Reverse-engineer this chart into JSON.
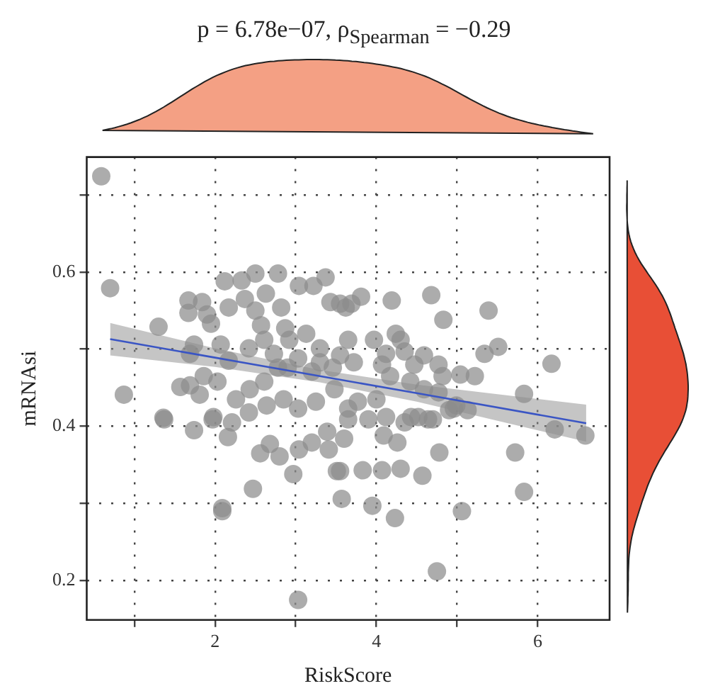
{
  "chart_data": {
    "type": "scatter",
    "title": "p = 6.78e−07, ρ$_{Spearman}$ = −0.29",
    "xlabel": "RiskScore",
    "ylabel": "mRNAsi",
    "xlim": [
      0.41,
      6.89
    ],
    "ylim": [
      0.149,
      0.749
    ],
    "xticks": [
      {
        "value": 1,
        "label": null
      },
      2,
      {
        "value": 3,
        "label": null
      },
      4,
      {
        "value": 5,
        "label": null
      },
      6
    ],
    "yticks": [
      0.2,
      {
        "value": 0.3,
        "label": null
      },
      0.4,
      {
        "value": 0.5,
        "label": null
      },
      0.6,
      {
        "value": 0.7,
        "label": null
      }
    ],
    "grid": true,
    "legend": false,
    "series": [
      {
        "type": "scatter",
        "marker": "circle",
        "color": "#8c8c8c",
        "x": [
          0.59,
          0.7,
          0.87,
          1.3,
          1.36,
          1.67,
          1.67,
          1.84,
          1.9,
          1.95,
          2.12,
          2.17,
          2.33,
          2.37,
          2.5,
          2.63,
          2.78,
          2.5,
          2.57,
          2.82,
          2.87,
          2.92,
          3.04,
          3.22,
          3.37,
          3.43,
          3.62,
          3.65,
          3.3,
          3.13,
          3.03,
          2.78,
          2.61,
          2.43,
          2.26,
          2.03,
          1.86,
          1.69,
          1.57,
          1.81,
          1.98,
          2.21,
          2.42,
          2.64,
          2.85,
          3.03,
          3.25,
          3.48,
          3.65,
          3.65,
          1.74,
          1.69,
          2.07,
          2.17,
          2.42,
          2.61,
          2.73,
          2.9,
          3.2,
          3.3,
          3.46,
          3.55,
          1.37,
          1.74,
          1.97,
          2.16,
          2.56,
          2.68,
          2.8,
          3.04,
          3.2,
          3.41,
          3.6,
          3.39,
          2.97,
          3.51,
          2.47,
          2.09,
          2.09,
          3.57,
          3.03,
          3.81,
          3.69,
          3.55,
          4.19,
          4.68,
          4.83,
          5.39,
          4.24,
          4.3,
          3.97,
          4.35,
          4.59,
          4.12,
          5.34,
          5.51,
          4.07,
          4.47,
          4.77,
          4.82,
          5.04,
          5.22,
          6.17,
          5.83,
          3.72,
          4.17,
          4.42,
          4.0,
          3.77,
          4.59,
          4.77,
          4.99,
          3.9,
          4.12,
          4.35,
          4.52,
          4.7,
          4.9,
          3.83,
          4.07,
          4.3,
          4.57,
          4.78,
          3.55,
          3.95,
          4.23,
          5.06,
          4.75,
          5.72,
          5.83,
          6.21,
          6.59,
          4.43,
          4.64,
          4.96,
          5.13,
          4.09,
          4.26
        ],
        "values": [
          0.724,
          0.579,
          0.441,
          0.529,
          0.411,
          0.563,
          0.547,
          0.561,
          0.545,
          0.533,
          0.588,
          0.554,
          0.589,
          0.565,
          0.598,
          0.572,
          0.598,
          0.55,
          0.531,
          0.554,
          0.527,
          0.512,
          0.582,
          0.582,
          0.593,
          0.561,
          0.554,
          0.512,
          0.501,
          0.52,
          0.488,
          0.476,
          0.458,
          0.448,
          0.435,
          0.458,
          0.465,
          0.453,
          0.451,
          0.441,
          0.412,
          0.405,
          0.418,
          0.427,
          0.435,
          0.423,
          0.432,
          0.448,
          0.423,
          0.409,
          0.506,
          0.494,
          0.506,
          0.485,
          0.501,
          0.512,
          0.494,
          0.476,
          0.471,
          0.483,
          0.476,
          0.492,
          0.409,
          0.395,
          0.409,
          0.386,
          0.365,
          0.377,
          0.361,
          0.37,
          0.379,
          0.37,
          0.384,
          0.393,
          0.338,
          0.342,
          0.319,
          0.294,
          0.29,
          0.306,
          0.175,
          0.568,
          0.559,
          0.559,
          0.563,
          0.57,
          0.538,
          0.55,
          0.52,
          0.512,
          0.512,
          0.497,
          0.492,
          0.494,
          0.494,
          0.503,
          0.48,
          0.48,
          0.48,
          0.465,
          0.467,
          0.465,
          0.481,
          0.442,
          0.483,
          0.465,
          0.458,
          0.435,
          0.432,
          0.448,
          0.444,
          0.427,
          0.409,
          0.412,
          0.405,
          0.412,
          0.409,
          0.421,
          0.343,
          0.343,
          0.345,
          0.336,
          0.366,
          0.342,
          0.297,
          0.281,
          0.29,
          0.212,
          0.366,
          0.315,
          0.396,
          0.388,
          0.412,
          0.409,
          0.423,
          0.421,
          0.388,
          0.379
        ]
      },
      {
        "type": "line",
        "marker": "none",
        "color": "#3a55c4",
        "x": [
          0.7,
          2,
          3.3,
          4.5,
          6.6
        ],
        "values": [
          0.513,
          0.489,
          0.465,
          0.443,
          0.404
        ],
        "lower": [
          0.492,
          0.477,
          0.457,
          0.432,
          0.38
        ],
        "upper": [
          0.534,
          0.501,
          0.473,
          0.454,
          0.428
        ]
      }
    ]
  }
}
